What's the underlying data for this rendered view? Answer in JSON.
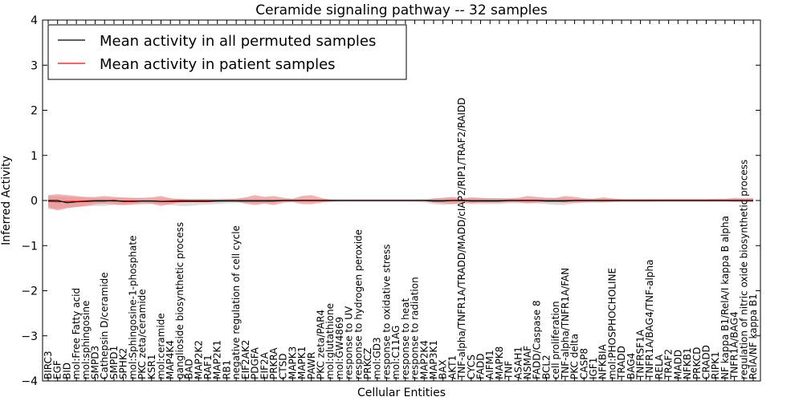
{
  "chart_data": {
    "type": "line",
    "title": "Ceramide signaling pathway -- 32 samples",
    "xlabel": "Cellular Entities",
    "ylabel": "Inferred Activity",
    "ylim": [
      -4,
      4
    ],
    "yticks": [
      "4",
      "3",
      "2",
      "1",
      "0",
      "−1",
      "−2",
      "−3",
      "−4"
    ],
    "ytick_values": [
      4,
      3,
      2,
      1,
      0,
      -1,
      -2,
      -3,
      -4
    ],
    "grid": false,
    "legend_position": "top-left",
    "categories": [
      "BIRC3",
      "EGF",
      "BID",
      "mol:Free Fatty acid",
      "mol:sphingosine",
      "SMPD3",
      "Cathepsin D/ceramide",
      "SMPD1",
      "SPHK2",
      "mol:Sphingosine-1-phosphate",
      "PKC zeta/ceramide",
      "KSR1",
      "mol:ceramide",
      "MAP4K4",
      "ganglioside biosynthetic process",
      "BAD",
      "MAP2K2",
      "RAF1",
      "MAP2K1",
      "RB1",
      "negative regulation of cell cycle",
      "EIF2AK2",
      "PDGFA",
      "EIF2A",
      "PRKRA",
      "CTSD",
      "MAPK3",
      "MAPK1",
      "PAWR",
      "PKC zeta/PAR4",
      "mol:glutathione",
      "mol:GW4869",
      "response to UV",
      "response to hydrogen peroxide",
      "PRKCZ",
      "mol:GD3",
      "response to oxidative stress",
      "mol:C11AG",
      "response to heat",
      "response to radiation",
      "MAP2K4",
      "MAP3K1",
      "BAX",
      "AKT1",
      "TNF-alpha/TNFR1A/TRADD/MADD/cIAP2/RIP1/TRAF2/RAIDD",
      "CYCS",
      "FADD",
      "AIFM1",
      "MAPK8",
      "TNF",
      "ASAH1",
      "NSMAF",
      "FADD/Caspase 8",
      "BCL2",
      "cell proliferation",
      "TNF-alpha/TNFR1A/FAN",
      "PKC delta",
      "CASP8",
      "IGF1",
      "NFKBIA",
      "mol:PHOSPHOCHOLINE",
      "TRADD",
      "BAG4",
      "TNFRSF1A",
      "TNFR1A/BAG4/TNF-alpha",
      "RELA",
      "TRAF2",
      "MADD",
      "NFKB1",
      "PRKCD",
      "CRADD",
      "RIPK1",
      "NF kappa B1/RelA/I kappa B alpha",
      "TNFR1A/BAG4",
      "regulation of nitric oxide biosynthetic process",
      "RelA/NF kappa B1"
    ],
    "series": [
      {
        "name": "Mean activity in all permuted samples",
        "color": "#000000",
        "values": [
          0.0,
          0.0,
          -0.05,
          -0.03,
          -0.02,
          -0.01,
          -0.01,
          0.0,
          -0.02,
          -0.02,
          -0.01,
          -0.01,
          -0.02,
          -0.02,
          -0.02,
          -0.02,
          -0.02,
          -0.02,
          -0.01,
          -0.01,
          -0.01,
          -0.01,
          -0.01,
          -0.01,
          -0.01,
          0.0,
          0.0,
          0.0,
          0.0,
          0.0,
          0.0,
          0.0,
          0.0,
          0.0,
          0.0,
          0.0,
          0.0,
          0.0,
          0.0,
          0.0,
          0.0,
          -0.01,
          -0.01,
          0.0,
          0.0,
          -0.01,
          -0.01,
          -0.01,
          -0.01,
          0.0,
          0.0,
          0.0,
          0.0,
          -0.01,
          -0.01,
          -0.01,
          0.0,
          0.0,
          0.0,
          0.0,
          0.0,
          0.0,
          0.0,
          0.0,
          0.0,
          0.0,
          0.0,
          0.0,
          0.0,
          0.0,
          0.0,
          0.0,
          0.0,
          0.0,
          0.0,
          0.0
        ],
        "band_low": [
          -0.2,
          -0.18,
          -0.16,
          -0.15,
          -0.13,
          -0.12,
          -0.12,
          -0.1,
          -0.1,
          -0.1,
          -0.09,
          -0.08,
          -0.08,
          -0.1,
          -0.12,
          -0.12,
          -0.1,
          -0.09,
          -0.08,
          -0.06,
          -0.06,
          -0.06,
          -0.06,
          -0.06,
          -0.05,
          -0.04,
          -0.04,
          -0.04,
          -0.04,
          -0.04,
          -0.04,
          -0.03,
          -0.03,
          -0.03,
          -0.03,
          -0.03,
          -0.03,
          -0.03,
          -0.03,
          -0.03,
          -0.05,
          -0.08,
          -0.1,
          -0.08,
          -0.06,
          -0.08,
          -0.08,
          -0.08,
          -0.08,
          -0.06,
          -0.06,
          -0.06,
          -0.06,
          -0.08,
          -0.1,
          -0.1,
          -0.06,
          -0.05,
          -0.05,
          -0.05,
          -0.04,
          -0.04,
          -0.04,
          -0.04,
          -0.04,
          -0.03,
          -0.03,
          -0.03,
          -0.03,
          -0.03,
          -0.03,
          -0.03,
          -0.03,
          -0.03,
          -0.03,
          -0.03
        ],
        "band_high": [
          0.1,
          0.09,
          0.08,
          0.07,
          0.06,
          0.05,
          0.05,
          0.05,
          0.05,
          0.05,
          0.05,
          0.04,
          0.04,
          0.04,
          0.04,
          0.04,
          0.04,
          0.04,
          0.04,
          0.04,
          0.04,
          0.04,
          0.04,
          0.04,
          0.03,
          0.03,
          0.03,
          0.03,
          0.03,
          0.03,
          0.03,
          0.03,
          0.03,
          0.03,
          0.03,
          0.03,
          0.03,
          0.03,
          0.03,
          0.03,
          0.04,
          0.04,
          0.05,
          0.05,
          0.04,
          0.05,
          0.05,
          0.05,
          0.05,
          0.04,
          0.04,
          0.04,
          0.04,
          0.05,
          0.05,
          0.05,
          0.04,
          0.04,
          0.04,
          0.04,
          0.03,
          0.03,
          0.03,
          0.03,
          0.03,
          0.03,
          0.03,
          0.03,
          0.03,
          0.03,
          0.03,
          0.03,
          0.03,
          0.03,
          0.03,
          0.03
        ]
      },
      {
        "name": "Mean activity in patient samples",
        "color": "#ff0000",
        "values": [
          -0.02,
          -0.03,
          -0.02,
          -0.02,
          -0.01,
          0.0,
          0.0,
          -0.01,
          -0.01,
          -0.01,
          -0.01,
          -0.01,
          -0.02,
          -0.01,
          0.0,
          0.0,
          0.0,
          0.0,
          0.0,
          0.0,
          0.0,
          0.0,
          0.0,
          0.0,
          0.0,
          0.0,
          0.0,
          0.0,
          0.0,
          0.0,
          0.0,
          0.0,
          0.0,
          0.0,
          0.0,
          0.0,
          0.0,
          0.0,
          0.0,
          0.0,
          0.0,
          0.0,
          0.0,
          0.0,
          0.0,
          0.0,
          0.0,
          0.0,
          0.0,
          0.0,
          0.0,
          0.0,
          0.0,
          0.0,
          0.0,
          0.0,
          0.0,
          0.0,
          0.0,
          0.0,
          0.0,
          0.0,
          0.0,
          0.0,
          0.0,
          0.0,
          0.0,
          0.0,
          0.0,
          0.0,
          0.0,
          0.0,
          0.0,
          0.0,
          0.0,
          0.0
        ],
        "band_low": [
          -0.15,
          -0.22,
          -0.17,
          -0.14,
          -0.12,
          -0.08,
          -0.07,
          -0.08,
          -0.1,
          -0.08,
          -0.06,
          -0.07,
          -0.12,
          -0.08,
          -0.04,
          -0.03,
          -0.03,
          -0.03,
          -0.03,
          -0.02,
          -0.02,
          -0.07,
          -0.1,
          -0.07,
          -0.1,
          -0.05,
          -0.03,
          -0.08,
          -0.08,
          -0.05,
          -0.02,
          -0.01,
          -0.01,
          -0.01,
          -0.01,
          -0.01,
          -0.01,
          -0.01,
          -0.01,
          -0.01,
          -0.01,
          -0.05,
          -0.06,
          -0.08,
          -0.05,
          -0.06,
          -0.05,
          -0.05,
          -0.05,
          -0.04,
          -0.04,
          -0.06,
          -0.05,
          -0.04,
          -0.04,
          -0.05,
          -0.05,
          -0.04,
          -0.03,
          -0.04,
          -0.03,
          -0.02,
          -0.02,
          -0.02,
          -0.02,
          -0.02,
          -0.02,
          -0.02,
          -0.02,
          -0.02,
          -0.02,
          -0.02,
          -0.02,
          -0.03,
          -0.03,
          -0.04
        ],
        "band_high": [
          0.12,
          0.14,
          0.12,
          0.1,
          0.08,
          0.08,
          0.1,
          0.08,
          0.07,
          0.06,
          0.06,
          0.07,
          0.1,
          0.05,
          0.03,
          0.02,
          0.02,
          0.02,
          0.02,
          0.03,
          0.04,
          0.07,
          0.12,
          0.08,
          0.1,
          0.06,
          0.04,
          0.1,
          0.12,
          0.06,
          0.02,
          0.01,
          0.01,
          0.01,
          0.01,
          0.01,
          0.01,
          0.01,
          0.01,
          0.01,
          0.01,
          0.05,
          0.06,
          0.08,
          0.05,
          0.07,
          0.06,
          0.05,
          0.05,
          0.05,
          0.06,
          0.1,
          0.08,
          0.06,
          0.06,
          0.1,
          0.08,
          0.05,
          0.04,
          0.07,
          0.05,
          0.03,
          0.03,
          0.03,
          0.03,
          0.03,
          0.03,
          0.03,
          0.03,
          0.03,
          0.03,
          0.04,
          0.04,
          0.06,
          0.05,
          0.06
        ]
      }
    ]
  }
}
